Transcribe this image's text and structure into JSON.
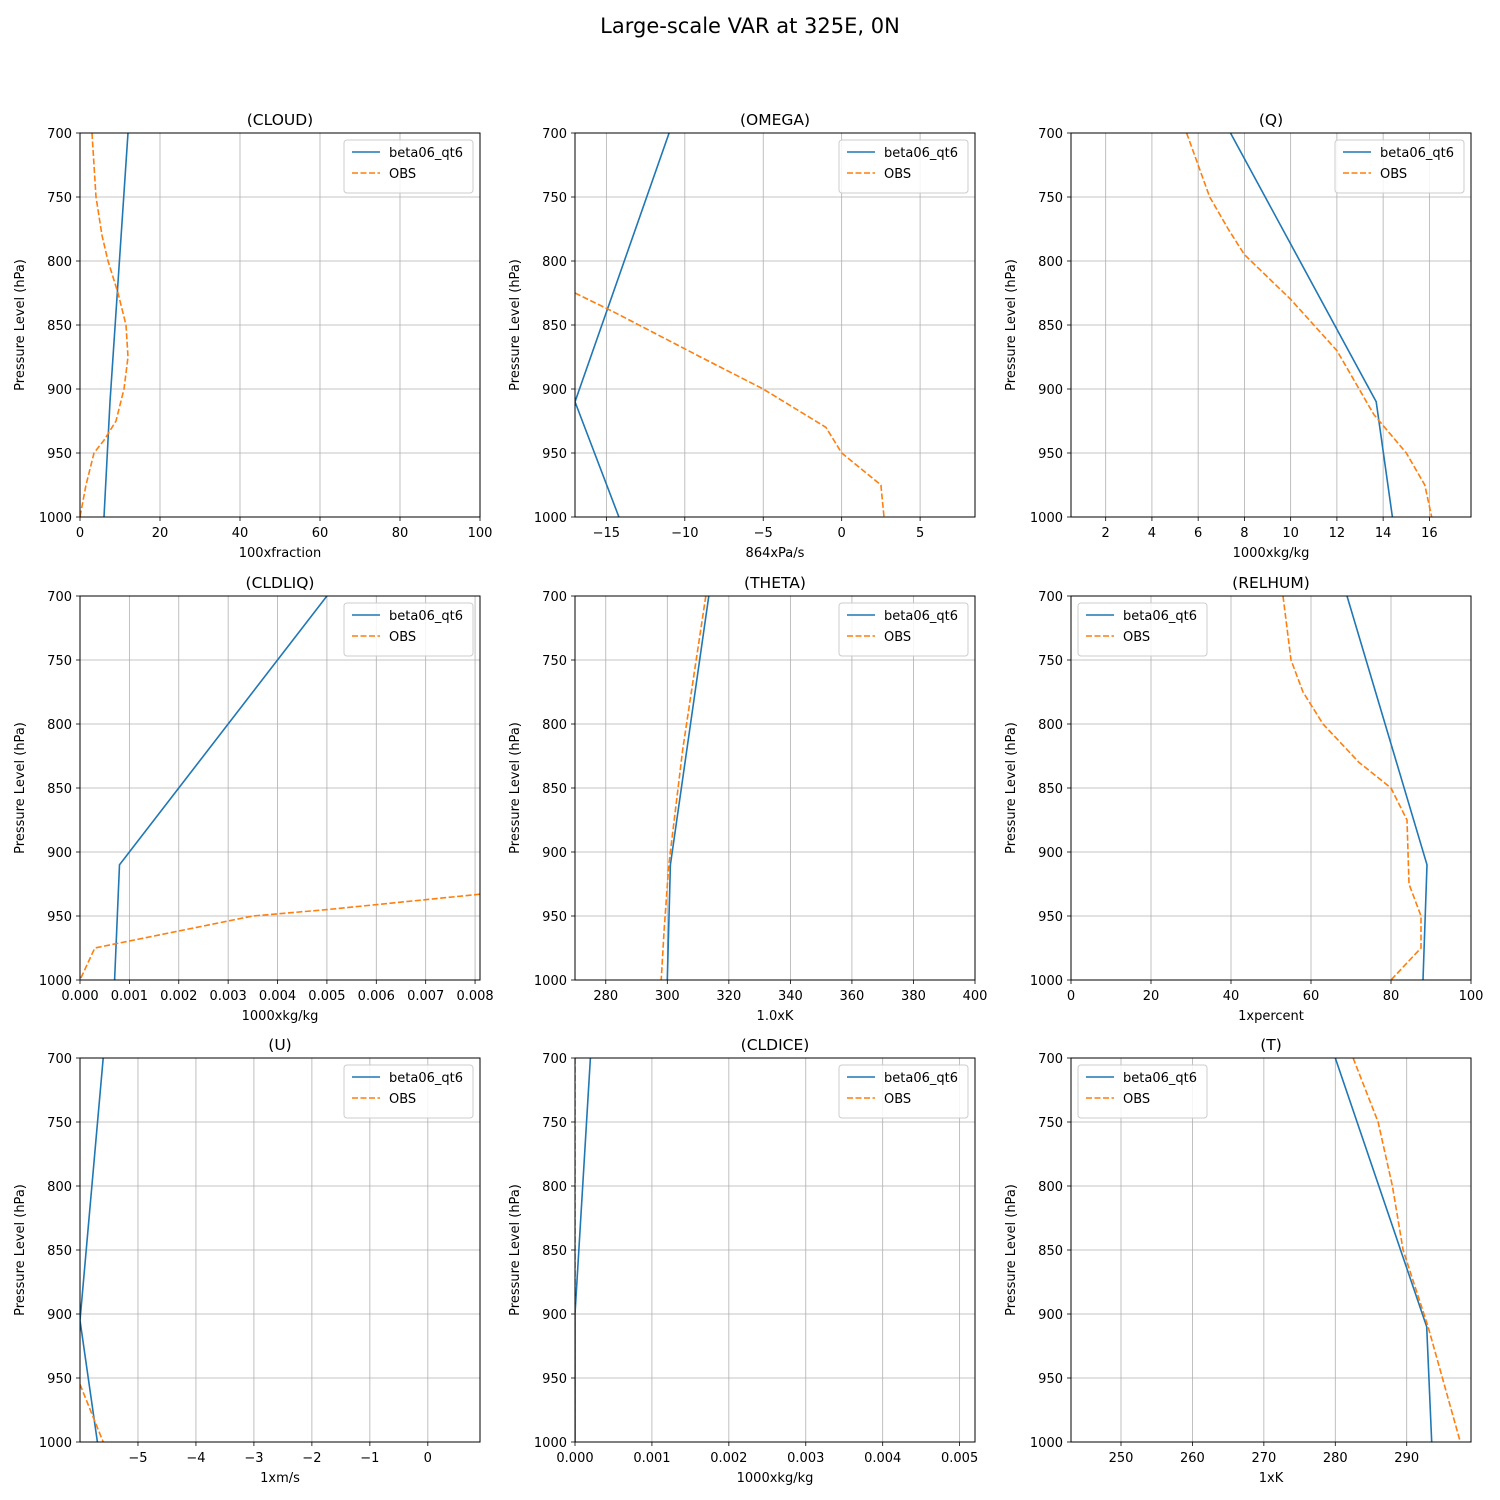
{
  "figure": {
    "title": "Large-scale VAR at 325E, 0N"
  },
  "colors": {
    "model": "#1f77b4",
    "obs": "#ff7f0e",
    "grid": "#b0b0b0",
    "axis": "#000000"
  },
  "chart_data": [
    {
      "type": "line",
      "title": "(CLOUD)",
      "xlabel": "100xfraction",
      "ylabel": "Pressure Level (hPa)",
      "xlim": [
        0,
        100
      ],
      "ylim": [
        1000,
        700
      ],
      "y_inverted": true,
      "grid": true,
      "legend": "top-right",
      "xticks": [
        0,
        20,
        40,
        60,
        80,
        100
      ],
      "xtick_labels": [
        "0",
        "20",
        "40",
        "60",
        "80",
        "100"
      ],
      "yticks": [
        700,
        750,
        800,
        850,
        900,
        950,
        1000
      ],
      "series": [
        {
          "name": "beta06_qt6",
          "style": "solid",
          "x": [
            12,
            7.5,
            6
          ],
          "y": [
            700,
            910,
            1000
          ]
        },
        {
          "name": "OBS",
          "style": "dashed",
          "x": [
            3,
            4,
            5.5,
            7,
            9.5,
            11.5,
            12,
            11,
            9,
            6,
            3.5,
            1.5,
            0
          ],
          "y": [
            700,
            750,
            780,
            800,
            825,
            850,
            875,
            900,
            925,
            940,
            950,
            975,
            1000
          ]
        }
      ]
    },
    {
      "type": "line",
      "title": "(OMEGA)",
      "xlabel": "864xPa/s",
      "ylabel": "Pressure Level (hPa)",
      "xlim": [
        -17,
        8.5
      ],
      "ylim": [
        1000,
        700
      ],
      "y_inverted": true,
      "grid": true,
      "legend": "top-right",
      "xticks": [
        -15,
        -10,
        -5,
        0,
        5
      ],
      "xtick_labels": [
        "−15",
        "−10",
        "−5",
        "0",
        "5"
      ],
      "yticks": [
        700,
        750,
        800,
        850,
        900,
        950,
        1000
      ],
      "series": [
        {
          "name": "beta06_qt6",
          "style": "solid",
          "x": [
            -11,
            -17,
            -14.2
          ],
          "y": [
            700,
            910,
            1000
          ]
        },
        {
          "name": "OBS",
          "style": "dashed",
          "x": [
            -17,
            -14.5,
            -9,
            -5,
            -1,
            0,
            2.5,
            2.7
          ],
          "y": [
            825,
            840,
            875,
            900,
            930,
            950,
            975,
            1000
          ]
        }
      ]
    },
    {
      "type": "line",
      "title": "(Q)",
      "xlabel": "1000xkg/kg",
      "ylabel": "Pressure Level (hPa)",
      "xlim": [
        0.5,
        17.8
      ],
      "ylim": [
        1000,
        700
      ],
      "y_inverted": true,
      "grid": true,
      "legend": "top-right",
      "xticks": [
        2,
        4,
        6,
        8,
        10,
        12,
        14,
        16
      ],
      "xtick_labels": [
        "2",
        "4",
        "6",
        "8",
        "10",
        "12",
        "14",
        "16"
      ],
      "yticks": [
        700,
        750,
        800,
        850,
        900,
        950,
        1000
      ],
      "series": [
        {
          "name": "beta06_qt6",
          "style": "solid",
          "x": [
            7.4,
            13.7,
            14.4
          ],
          "y": [
            700,
            910,
            1000
          ]
        },
        {
          "name": "OBS",
          "style": "dashed",
          "x": [
            5.5,
            6.5,
            7.3,
            8,
            10,
            12,
            13.6,
            15,
            15.8,
            16.1
          ],
          "y": [
            700,
            750,
            775,
            795,
            830,
            870,
            920,
            950,
            975,
            1000
          ]
        }
      ]
    },
    {
      "type": "line",
      "title": "(CLDLIQ)",
      "xlabel": "1000xkg/kg",
      "ylabel": "Pressure Level (hPa)",
      "xlim": [
        0,
        0.0081
      ],
      "ylim": [
        1000,
        700
      ],
      "y_inverted": true,
      "grid": true,
      "legend": "top-right",
      "xticks": [
        0,
        0.001,
        0.002,
        0.003,
        0.004,
        0.005,
        0.006,
        0.007,
        0.008
      ],
      "xtick_labels": [
        "0.000",
        "0.001",
        "0.002",
        "0.003",
        "0.004",
        "0.005",
        "0.006",
        "0.007",
        "0.008"
      ],
      "yticks": [
        700,
        750,
        800,
        850,
        900,
        950,
        1000
      ],
      "series": [
        {
          "name": "beta06_qt6",
          "style": "solid",
          "x": [
            0.005,
            0.0008,
            0.0007
          ],
          "y": [
            700,
            910,
            1000
          ]
        },
        {
          "name": "OBS",
          "style": "dashed",
          "x": [
            0.0081,
            0.005,
            0.0035,
            0.0003,
            0
          ],
          "y": [
            933,
            945,
            950,
            975,
            1000
          ]
        }
      ]
    },
    {
      "type": "line",
      "title": "(THETA)",
      "xlabel": "1.0xK",
      "ylabel": "Pressure Level (hPa)",
      "xlim": [
        270,
        400
      ],
      "ylim": [
        1000,
        700
      ],
      "y_inverted": true,
      "grid": true,
      "legend": "top-right",
      "xticks": [
        280,
        300,
        320,
        340,
        360,
        380,
        400
      ],
      "xtick_labels": [
        "280",
        "300",
        "320",
        "340",
        "360",
        "380",
        "400"
      ],
      "yticks": [
        700,
        750,
        800,
        850,
        900,
        950,
        1000
      ],
      "series": [
        {
          "name": "beta06_qt6",
          "style": "solid",
          "x": [
            313.5,
            301,
            300
          ],
          "y": [
            700,
            910,
            1000
          ]
        },
        {
          "name": "OBS",
          "style": "dashed",
          "x": [
            312.5,
            305,
            300.5,
            299,
            298
          ],
          "y": [
            700,
            820,
            910,
            960,
            1000
          ]
        }
      ]
    },
    {
      "type": "line",
      "title": "(RELHUM)",
      "xlabel": "1xpercent",
      "ylabel": "Pressure Level (hPa)",
      "xlim": [
        0,
        100
      ],
      "ylim": [
        1000,
        700
      ],
      "y_inverted": true,
      "grid": true,
      "legend": "top-left",
      "xticks": [
        0,
        20,
        40,
        60,
        80,
        100
      ],
      "xtick_labels": [
        "0",
        "20",
        "40",
        "60",
        "80",
        "100"
      ],
      "yticks": [
        700,
        750,
        800,
        850,
        900,
        950,
        1000
      ],
      "series": [
        {
          "name": "beta06_qt6",
          "style": "solid",
          "x": [
            69,
            89,
            88
          ],
          "y": [
            700,
            910,
            1000
          ]
        },
        {
          "name": "OBS",
          "style": "dashed",
          "x": [
            53,
            55,
            58,
            63,
            72,
            80,
            84,
            84.5,
            87.5,
            87.5,
            80
          ],
          "y": [
            700,
            750,
            775,
            800,
            830,
            850,
            875,
            925,
            950,
            975,
            1000
          ]
        }
      ]
    },
    {
      "type": "line",
      "title": "(U)",
      "xlabel": "1xm/s",
      "ylabel": "Pressure Level (hPa)",
      "xlim": [
        -6,
        0.9
      ],
      "ylim": [
        1000,
        700
      ],
      "y_inverted": true,
      "grid": true,
      "legend": "top-right",
      "xticks": [
        -5,
        -4,
        -3,
        -2,
        -1,
        0
      ],
      "xtick_labels": [
        "−5",
        "−4",
        "−3",
        "−2",
        "−1",
        "0"
      ],
      "yticks": [
        700,
        750,
        800,
        850,
        900,
        950,
        1000
      ],
      "series": [
        {
          "name": "beta06_qt6",
          "style": "solid",
          "x": [
            -5.6,
            -6,
            -5.7
          ],
          "y": [
            700,
            905,
            1000
          ]
        },
        {
          "name": "OBS",
          "style": "dashed",
          "x": [
            -6,
            -5.6
          ],
          "y": [
            955,
            1000
          ]
        }
      ]
    },
    {
      "type": "line",
      "title": "(CLDICE)",
      "xlabel": "1000xkg/kg",
      "ylabel": "Pressure Level (hPa)",
      "xlim": [
        0,
        0.0052
      ],
      "ylim": [
        1000,
        700
      ],
      "y_inverted": true,
      "grid": true,
      "legend": "top-right",
      "xticks": [
        0,
        0.001,
        0.002,
        0.003,
        0.004,
        0.005
      ],
      "xtick_labels": [
        "0.000",
        "0.001",
        "0.002",
        "0.003",
        "0.004",
        "0.005"
      ],
      "yticks": [
        700,
        750,
        800,
        850,
        900,
        950,
        1000
      ],
      "series": [
        {
          "name": "beta06_qt6",
          "style": "solid",
          "x": [
            0.0002,
            0,
            0
          ],
          "y": [
            700,
            900,
            1000
          ]
        },
        {
          "name": "OBS",
          "style": "dashed",
          "x": [
            0,
            0
          ],
          "y": [
            700,
            1000
          ]
        }
      ]
    },
    {
      "type": "line",
      "title": "(T)",
      "xlabel": "1xK",
      "ylabel": "Pressure Level (hPa)",
      "xlim": [
        243,
        299
      ],
      "ylim": [
        1000,
        700
      ],
      "y_inverted": true,
      "grid": true,
      "legend": "top-left",
      "xticks": [
        250,
        260,
        270,
        280,
        290
      ],
      "xtick_labels": [
        "250",
        "260",
        "270",
        "280",
        "290"
      ],
      "yticks": [
        700,
        750,
        800,
        850,
        900,
        950,
        1000
      ],
      "series": [
        {
          "name": "beta06_qt6",
          "style": "solid",
          "x": [
            280,
            292.8,
            293.5
          ],
          "y": [
            700,
            910,
            1000
          ]
        },
        {
          "name": "OBS",
          "style": "dashed",
          "x": [
            282.5,
            286,
            288,
            289.5,
            293,
            295.5,
            297.5
          ],
          "y": [
            700,
            750,
            800,
            850,
            910,
            960,
            1000
          ]
        }
      ]
    }
  ]
}
